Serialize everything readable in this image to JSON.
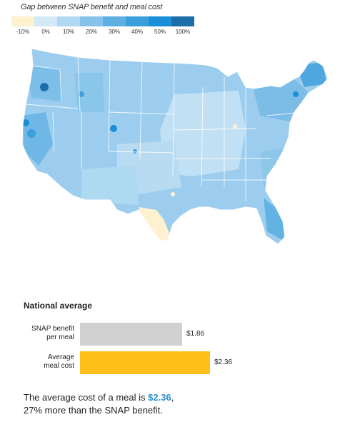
{
  "legend": {
    "title": "Gap between SNAP benefit and meal cost",
    "ticks": [
      "-10%",
      "0%",
      "10%",
      "20%",
      "30%",
      "40%",
      "50%",
      "100%"
    ],
    "colors": [
      "#fdf1d0",
      "#d3e9f7",
      "#b1d8f0",
      "#86c3ea",
      "#5eafe2",
      "#3b9fdc",
      "#1a8ed6",
      "#1b6ea9"
    ]
  },
  "national": {
    "title": "National average",
    "bars": [
      {
        "label_line1": "SNAP benefit",
        "label_line2": "per meal",
        "value_text": "$1.86",
        "value": 1.86,
        "color": "#d0d0d0"
      },
      {
        "label_line1": "Average",
        "label_line2": "meal cost",
        "value_text": "$2.36",
        "value": 2.36,
        "color": "#ffbf1a"
      }
    ]
  },
  "summary": {
    "text_before": "The average cost of a meal is ",
    "highlight": "$2.36",
    "text_after": ",",
    "line2": "27% more than the SNAP benefit."
  }
}
